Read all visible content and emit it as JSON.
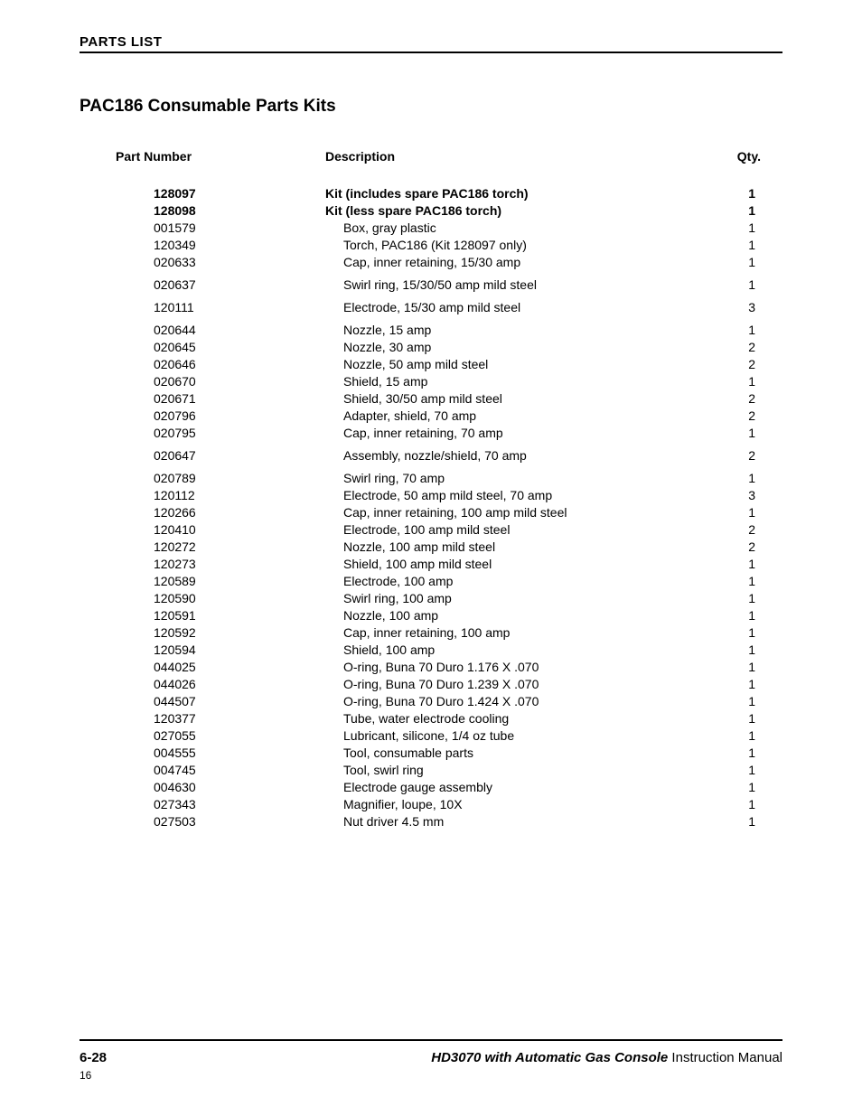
{
  "header": {
    "section_label": "PARTS LIST"
  },
  "title": "PAC186 Consumable Parts Kits",
  "table": {
    "headers": {
      "part_number": "Part Number",
      "description": "Description",
      "qty": "Qty."
    },
    "rows": [
      {
        "pn": "128097",
        "desc": "Kit (includes spare PAC186 torch)",
        "qty": "1",
        "bold": true
      },
      {
        "pn": "128098",
        "desc": "Kit (less spare PAC186 torch)",
        "qty": "1",
        "bold": true
      },
      {
        "pn": "001579",
        "desc": "Box, gray plastic",
        "qty": "1"
      },
      {
        "pn": "120349",
        "desc": "Torch, PAC186 (Kit 128097 only)",
        "qty": "1"
      },
      {
        "pn": "020633",
        "desc": "Cap, inner retaining, 15/30 amp",
        "qty": "1"
      },
      {
        "gap": true
      },
      {
        "pn": "020637",
        "desc": "Swirl ring, 15/30/50 amp mild steel",
        "qty": "1"
      },
      {
        "gap": true
      },
      {
        "pn": "120111",
        "desc": "Electrode, 15/30 amp mild steel",
        "qty": "3"
      },
      {
        "gap": true
      },
      {
        "pn": "020644",
        "desc": "Nozzle, 15 amp",
        "qty": "1"
      },
      {
        "pn": "020645",
        "desc": "Nozzle, 30 amp",
        "qty": "2"
      },
      {
        "pn": "020646",
        "desc": "Nozzle, 50 amp mild steel",
        "qty": "2"
      },
      {
        "pn": "020670",
        "desc": "Shield, 15 amp",
        "qty": "1"
      },
      {
        "pn": "020671",
        "desc": "Shield, 30/50 amp mild steel",
        "qty": "2"
      },
      {
        "pn": "020796",
        "desc": "Adapter, shield, 70 amp",
        "qty": "2"
      },
      {
        "pn": "020795",
        "desc": "Cap, inner retaining, 70 amp",
        "qty": "1"
      },
      {
        "gap": true
      },
      {
        "pn": "020647",
        "desc": "Assembly, nozzle/shield, 70 amp",
        "qty": "2"
      },
      {
        "gap": true
      },
      {
        "pn": "020789",
        "desc": "Swirl ring, 70 amp",
        "qty": "1"
      },
      {
        "pn": "120112",
        "desc": "Electrode, 50 amp mild steel, 70 amp",
        "qty": "3"
      },
      {
        "pn": "120266",
        "desc": "Cap, inner retaining, 100 amp mild steel",
        "qty": "1"
      },
      {
        "pn": "120410",
        "desc": "Electrode, 100 amp mild steel",
        "qty": "2"
      },
      {
        "pn": "120272",
        "desc": "Nozzle, 100 amp mild steel",
        "qty": "2"
      },
      {
        "pn": "120273",
        "desc": "Shield, 100 amp mild steel",
        "qty": "1"
      },
      {
        "pn": "120589",
        "desc": "Electrode, 100 amp",
        "qty": "1"
      },
      {
        "pn": "120590",
        "desc": "Swirl ring, 100 amp",
        "qty": "1"
      },
      {
        "pn": "120591",
        "desc": "Nozzle, 100 amp",
        "qty": "1"
      },
      {
        "pn": "120592",
        "desc": "Cap, inner retaining, 100 amp",
        "qty": "1"
      },
      {
        "pn": "120594",
        "desc": "Shield, 100 amp",
        "qty": "1"
      },
      {
        "pn": "044025",
        "desc": "O-ring, Buna 70 Duro 1.176 X .070",
        "qty": "1"
      },
      {
        "pn": "044026",
        "desc": "O-ring, Buna 70 Duro 1.239 X .070",
        "qty": "1"
      },
      {
        "pn": "044507",
        "desc": "O-ring, Buna 70 Duro 1.424 X .070",
        "qty": "1"
      },
      {
        "pn": "120377",
        "desc": "Tube, water electrode cooling",
        "qty": "1"
      },
      {
        "pn": "027055",
        "desc": "Lubricant, silicone, 1/4 oz tube",
        "qty": "1"
      },
      {
        "pn": "004555",
        "desc": "Tool, consumable parts",
        "qty": "1"
      },
      {
        "pn": "004745",
        "desc": "Tool, swirl ring",
        "qty": "1"
      },
      {
        "pn": "004630",
        "desc": "Electrode gauge assembly",
        "qty": "1"
      },
      {
        "pn": "027343",
        "desc": "Magnifier,  loupe, 10X",
        "qty": "1"
      },
      {
        "pn": "027503",
        "desc": "Nut driver 4.5 mm",
        "qty": "1"
      }
    ]
  },
  "footer": {
    "page_num": "6-28",
    "product": "HD3070 with Automatic Gas Console",
    "manual_label": "  Instruction Manual",
    "small_num": "16"
  }
}
